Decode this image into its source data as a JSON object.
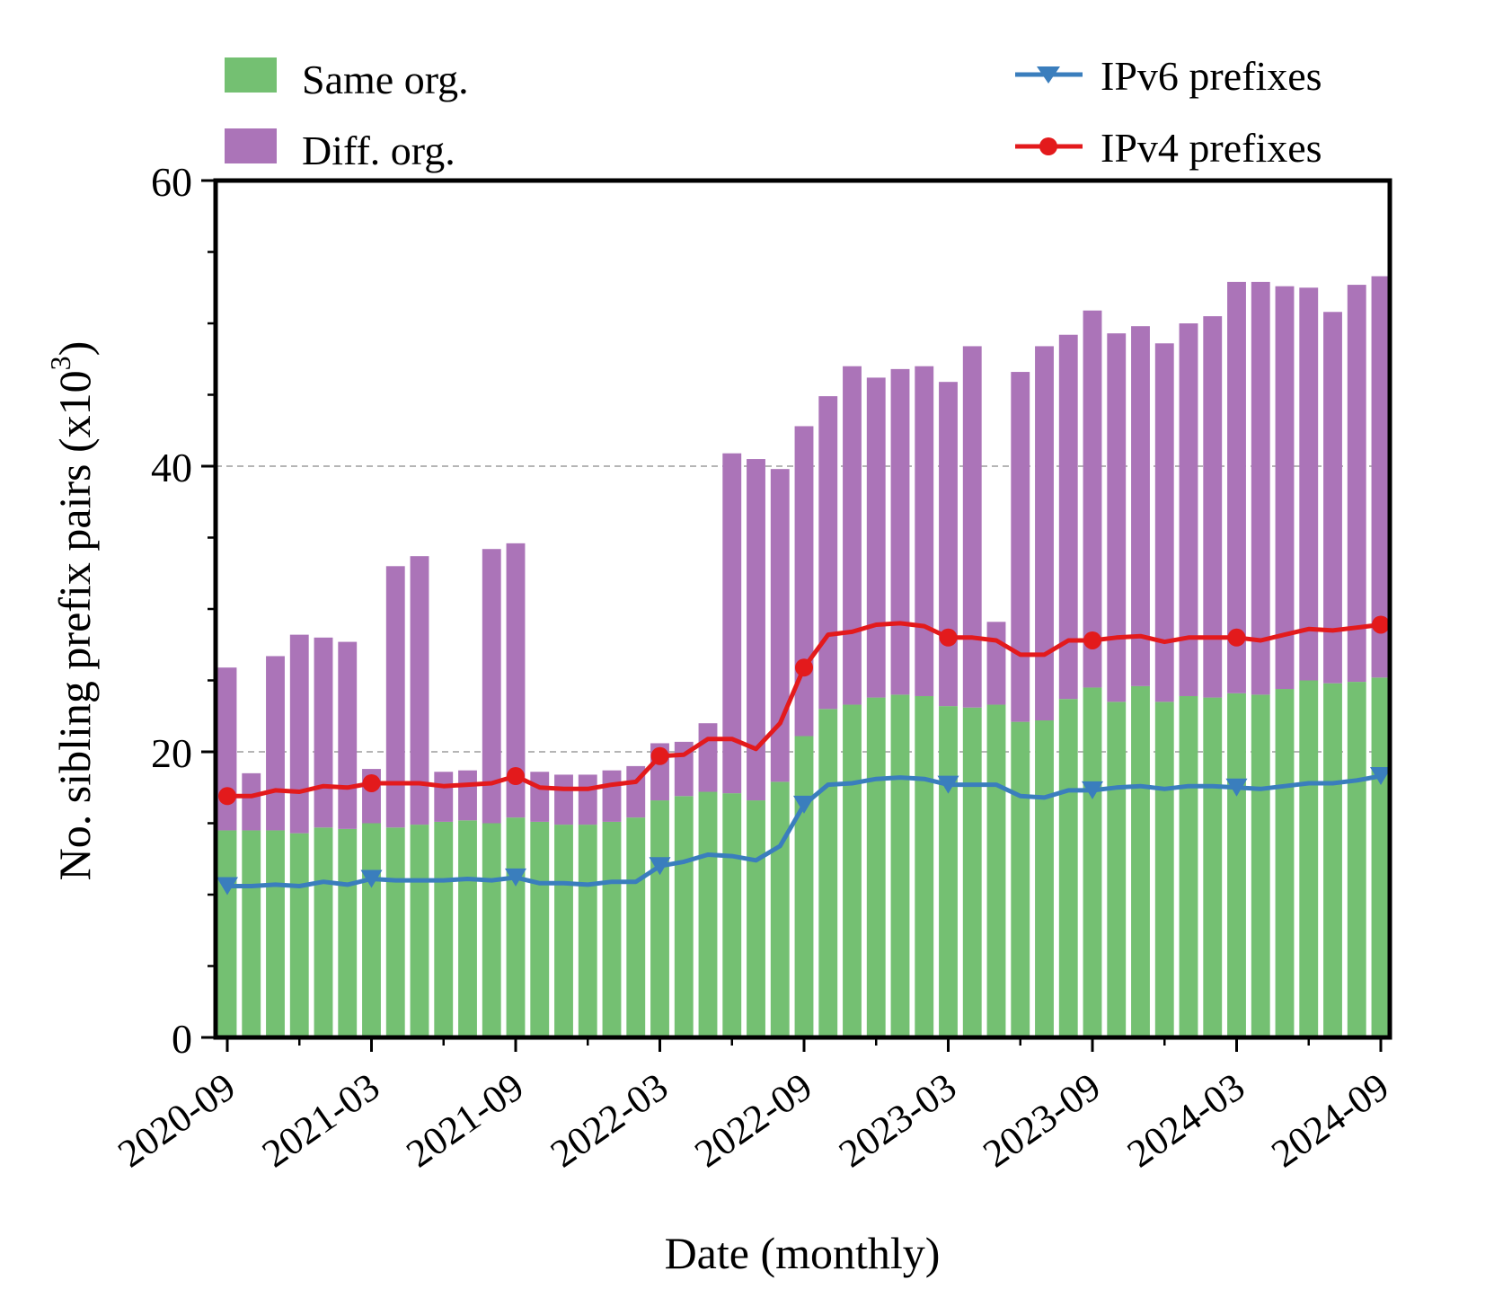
{
  "chart_data": {
    "type": "bar",
    "stacked": true,
    "ylabel": "No. sibling prefix pairs (x10",
    "ylabel_sup": "3",
    "ylabel_close": ")",
    "xlabel": "Date (monthly)",
    "ylim": [
      0,
      60
    ],
    "yticks": [
      "0",
      "20",
      "40",
      "60"
    ],
    "ytick_values": [
      0,
      20,
      40,
      60
    ],
    "yminor": [
      5,
      10,
      15,
      25,
      30,
      35,
      45,
      50,
      55
    ],
    "grid_y": [
      20,
      40
    ],
    "x_start": "2020-09",
    "x_end": "2024-09",
    "xticks": [
      "2020-09",
      "2021-03",
      "2021-09",
      "2022-03",
      "2022-09",
      "2023-03",
      "2023-09",
      "2024-03",
      "2024-09"
    ],
    "xtick_index": [
      0,
      6,
      12,
      18,
      24,
      30,
      36,
      42,
      48
    ],
    "n_months": 49,
    "series": [
      {
        "name": "Same org.",
        "kind": "bar",
        "color": "#74c072",
        "values": [
          14.5,
          14.5,
          14.5,
          14.3,
          14.7,
          14.6,
          15.0,
          14.7,
          14.9,
          15.1,
          15.2,
          15.0,
          15.4,
          15.1,
          14.9,
          14.9,
          15.1,
          15.4,
          16.6,
          16.9,
          17.2,
          17.1,
          16.6,
          17.9,
          21.1,
          23.0,
          23.3,
          23.8,
          24.0,
          23.9,
          23.2,
          23.1,
          23.3,
          22.1,
          22.2,
          23.7,
          24.5,
          23.5,
          24.6,
          23.5,
          23.9,
          23.8,
          24.1,
          24.0,
          24.4,
          25.0,
          24.8,
          24.9,
          25.2
        ]
      },
      {
        "name": "Diff. org.",
        "kind": "bar",
        "color": "#ab74b8",
        "values": [
          11.4,
          4.0,
          12.2,
          13.9,
          13.3,
          13.1,
          3.8,
          18.3,
          18.8,
          3.5,
          3.5,
          19.2,
          19.2,
          3.5,
          3.5,
          3.5,
          3.6,
          3.6,
          4.0,
          3.8,
          4.8,
          23.8,
          23.9,
          21.9,
          21.7,
          21.9,
          23.7,
          22.4,
          22.8,
          23.1,
          22.7,
          25.3,
          5.8,
          24.5,
          26.2,
          25.5,
          26.4,
          25.8,
          25.2,
          25.1,
          26.1,
          26.7,
          28.8,
          28.9,
          28.2,
          27.5,
          26.0,
          27.8,
          28.1
        ]
      },
      {
        "name": "IPv4 prefixes",
        "kind": "line",
        "marker": "circle",
        "color": "#e31a1c",
        "values": [
          16.9,
          16.9,
          17.3,
          17.2,
          17.6,
          17.5,
          17.8,
          17.8,
          17.8,
          17.6,
          17.7,
          17.8,
          18.3,
          17.5,
          17.4,
          17.4,
          17.7,
          17.9,
          19.7,
          19.8,
          20.9,
          20.9,
          20.2,
          22.0,
          25.9,
          28.2,
          28.4,
          28.9,
          29.0,
          28.8,
          28.0,
          28.0,
          27.8,
          26.8,
          26.8,
          27.8,
          27.8,
          28.0,
          28.1,
          27.7,
          28.0,
          28.0,
          28.0,
          27.8,
          28.2,
          28.6,
          28.5,
          28.7,
          28.9
        ]
      },
      {
        "name": "IPv6 prefixes",
        "kind": "line",
        "marker": "triangle-down",
        "color": "#3a7ebd",
        "values": [
          10.6,
          10.6,
          10.7,
          10.6,
          10.9,
          10.7,
          11.1,
          11.0,
          11.0,
          11.0,
          11.1,
          11.0,
          11.2,
          10.8,
          10.8,
          10.7,
          10.9,
          10.9,
          12.0,
          12.3,
          12.8,
          12.7,
          12.4,
          13.4,
          16.3,
          17.7,
          17.8,
          18.1,
          18.2,
          18.1,
          17.7,
          17.7,
          17.7,
          16.9,
          16.8,
          17.3,
          17.3,
          17.5,
          17.6,
          17.4,
          17.6,
          17.6,
          17.5,
          17.4,
          17.6,
          17.8,
          17.8,
          18.0,
          18.3
        ]
      }
    ],
    "marker_every": 6,
    "legend_left": "top-left",
    "legend_right": "top-right"
  }
}
